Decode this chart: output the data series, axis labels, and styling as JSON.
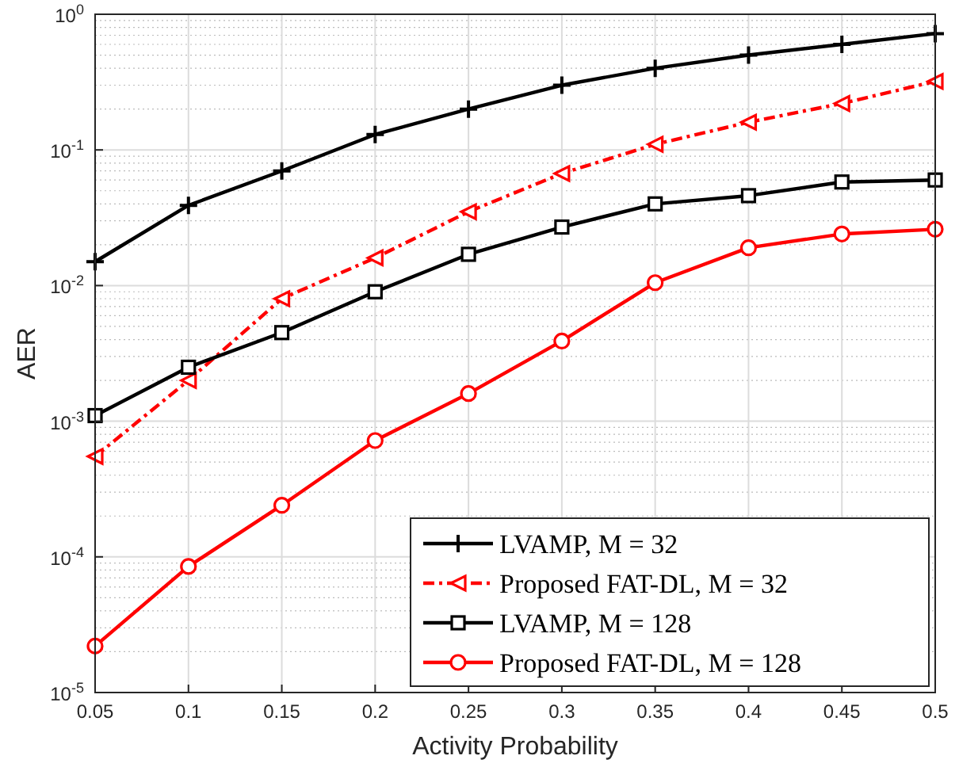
{
  "chart_data": {
    "type": "line",
    "xlabel": "Activity Probability",
    "ylabel": "AER",
    "x": [
      0.05,
      0.1,
      0.15,
      0.2,
      0.25,
      0.3,
      0.35,
      0.4,
      0.45,
      0.5
    ],
    "series": [
      {
        "name": "LVAMP, M = 32",
        "color": "#000000",
        "marker": "cross",
        "line_style": "solid",
        "values": [
          0.015,
          0.039,
          0.07,
          0.13,
          0.2,
          0.3,
          0.4,
          0.5,
          0.6,
          0.72
        ]
      },
      {
        "name": "Proposed FAT-DL, M = 32",
        "color": "#ff0000",
        "marker": "triangle",
        "line_style": "dashed",
        "values": [
          0.00055,
          0.002,
          0.008,
          0.016,
          0.035,
          0.067,
          0.11,
          0.16,
          0.22,
          0.32
        ]
      },
      {
        "name": "LVAMP, M = 128",
        "color": "#000000",
        "marker": "square",
        "line_style": "solid",
        "values": [
          0.0011,
          0.0025,
          0.0045,
          0.009,
          0.017,
          0.027,
          0.04,
          0.046,
          0.058,
          0.06
        ]
      },
      {
        "name": "Proposed FAT-DL, M = 128",
        "color": "#ff0000",
        "marker": "circle",
        "line_style": "solid",
        "values": [
          2.2e-05,
          8.5e-05,
          0.00024,
          0.00072,
          0.0016,
          0.0039,
          0.0105,
          0.019,
          0.024,
          0.026
        ]
      }
    ],
    "log": "y",
    "xlim": [
      0.05,
      0.5
    ],
    "ylim": [
      1e-05,
      1
    ],
    "xticks": [
      0.05,
      0.1,
      0.15,
      0.2,
      0.25,
      0.3,
      0.35,
      0.4,
      0.45,
      0.5
    ],
    "yticks": [
      {
        "value": 1e-05,
        "label": "10$^{-5}$"
      },
      {
        "value": 0.0001,
        "label": "10$^{-4}$"
      },
      {
        "value": 0.001,
        "label": "10$^{-3}$"
      },
      {
        "value": 0.01,
        "label": "10$^{-2}$"
      },
      {
        "value": 0.1,
        "label": "10$^{-1}$"
      },
      {
        "value": 1,
        "label": "10$^{0}$"
      }
    ],
    "grid": true,
    "legend": "bottom right"
  }
}
